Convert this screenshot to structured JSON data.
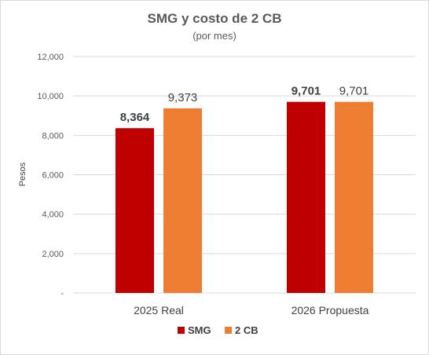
{
  "chart_data": {
    "type": "bar",
    "title": "SMG y costo de 2 CB",
    "subtitle": "(por mes)",
    "ylabel": "Pesos",
    "xlabel": "",
    "categories": [
      "2025 Real",
      "2026 Propuesta"
    ],
    "series": [
      {
        "name": "SMG",
        "values": [
          8364,
          9701
        ],
        "color": "#c00000",
        "labels": [
          "8,364",
          "9,701"
        ]
      },
      {
        "name": "2 CB",
        "values": [
          9373,
          9701
        ],
        "color": "#ed7d31",
        "labels": [
          "9,373",
          "9,701"
        ]
      }
    ],
    "ylim": [
      0,
      12000
    ],
    "yticks": [
      0,
      2000,
      4000,
      6000,
      8000,
      10000,
      12000
    ],
    "ytick_labels": [
      "-",
      "2,000",
      "4,000",
      "6,000",
      "8,000",
      "10,000",
      "12,000"
    ],
    "grid": true,
    "legend": "bottom"
  }
}
